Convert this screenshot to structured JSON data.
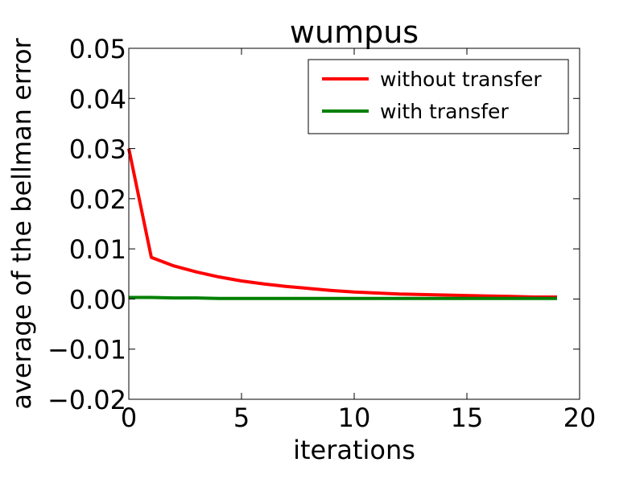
{
  "chart_data": {
    "type": "line",
    "title": "wumpus",
    "xlabel": "iterations",
    "ylabel": "average of the bellman error",
    "xlim": [
      0,
      20
    ],
    "ylim": [
      -0.02,
      0.05
    ],
    "xticks": [
      0,
      5,
      10,
      15,
      20
    ],
    "xtick_labels": [
      "0",
      "5",
      "10",
      "15",
      "20"
    ],
    "yticks": [
      -0.02,
      -0.01,
      0.0,
      0.01,
      0.02,
      0.03,
      0.04,
      0.05
    ],
    "ytick_labels": [
      "−0.02",
      "−0.01",
      "0.00",
      "0.01",
      "0.02",
      "0.03",
      "0.04",
      "0.05"
    ],
    "grid": false,
    "legend_position": "top-right",
    "x": [
      0,
      1,
      2,
      3,
      4,
      5,
      6,
      7,
      8,
      9,
      10,
      11,
      12,
      13,
      14,
      15,
      16,
      17,
      18,
      19
    ],
    "series": [
      {
        "name": "without transfer",
        "color": "#ff0000",
        "values": [
          0.03,
          0.0083,
          0.0066,
          0.0054,
          0.0044,
          0.0036,
          0.003,
          0.0025,
          0.0021,
          0.0017,
          0.0014,
          0.0012,
          0.001,
          0.0009,
          0.0008,
          0.0007,
          0.0006,
          0.0005,
          0.0004,
          0.0004
        ]
      },
      {
        "name": "with transfer",
        "color": "#008000",
        "values": [
          0.0003,
          0.0003,
          0.0002,
          0.0002,
          0.0001,
          0.0001,
          0.0001,
          0.0001,
          0.0001,
          0.0001,
          0.0001,
          0.0001,
          0.0001,
          0.0001,
          0.0001,
          0.0001,
          0.0001,
          0.0001,
          0.0001,
          0.0001
        ]
      }
    ]
  }
}
